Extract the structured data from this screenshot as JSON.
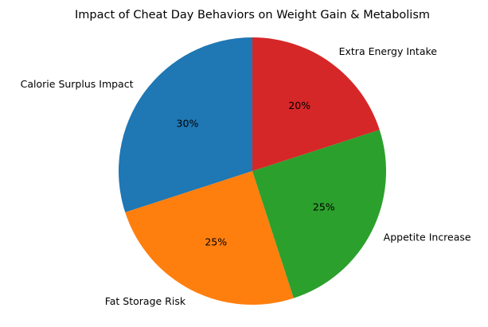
{
  "chart_data": {
    "type": "pie",
    "title": "Impact of Cheat Day Behaviors on Weight Gain & Metabolism",
    "start_angle_deg": 90,
    "direction": "counterclockwise",
    "slices": [
      {
        "label": "Calorie Surplus Impact",
        "value": 30,
        "pct_label": "30%",
        "color": "#1f77b4"
      },
      {
        "label": "Fat Storage Risk",
        "value": 25,
        "pct_label": "25%",
        "color": "#ff7f0e"
      },
      {
        "label": "Appetite Increase",
        "value": 25,
        "pct_label": "25%",
        "color": "#2ca02c"
      },
      {
        "label": "Extra Energy Intake",
        "value": 20,
        "pct_label": "20%",
        "color": "#d62728"
      }
    ]
  }
}
